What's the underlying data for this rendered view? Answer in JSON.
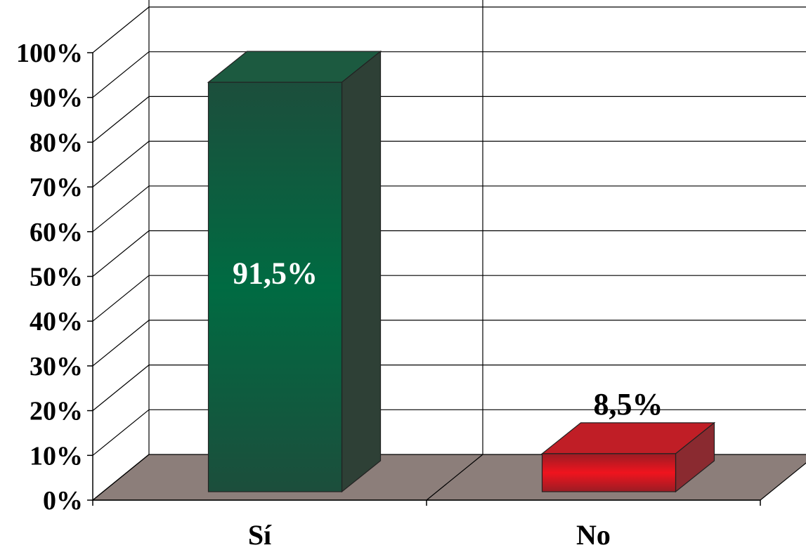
{
  "chart_data": {
    "type": "bar",
    "categories": [
      "Sí",
      "No"
    ],
    "values": [
      91.5,
      8.5
    ],
    "data_labels": [
      "91,5%",
      "8,5%"
    ],
    "ylim": [
      0,
      100
    ],
    "yticks": [
      {
        "value": 0,
        "label": "0%"
      },
      {
        "value": 10,
        "label": "10%"
      },
      {
        "value": 20,
        "label": "20%"
      },
      {
        "value": 30,
        "label": "30%"
      },
      {
        "value": 40,
        "label": "40%"
      },
      {
        "value": 50,
        "label": "50%"
      },
      {
        "value": 60,
        "label": "60%"
      },
      {
        "value": 70,
        "label": "70%"
      },
      {
        "value": 80,
        "label": "80%"
      },
      {
        "value": 90,
        "label": "90%"
      },
      {
        "value": 100,
        "label": "100%"
      }
    ],
    "title": "",
    "xlabel": "",
    "ylabel": "",
    "grid": true,
    "legend": "none",
    "colors": {
      "bars": [
        "#0b6b42",
        "#e8141e"
      ],
      "floor": "#8c7e7a",
      "grid": "#000000",
      "label_inside": "#ffffff",
      "label_outside": "#000000"
    }
  }
}
